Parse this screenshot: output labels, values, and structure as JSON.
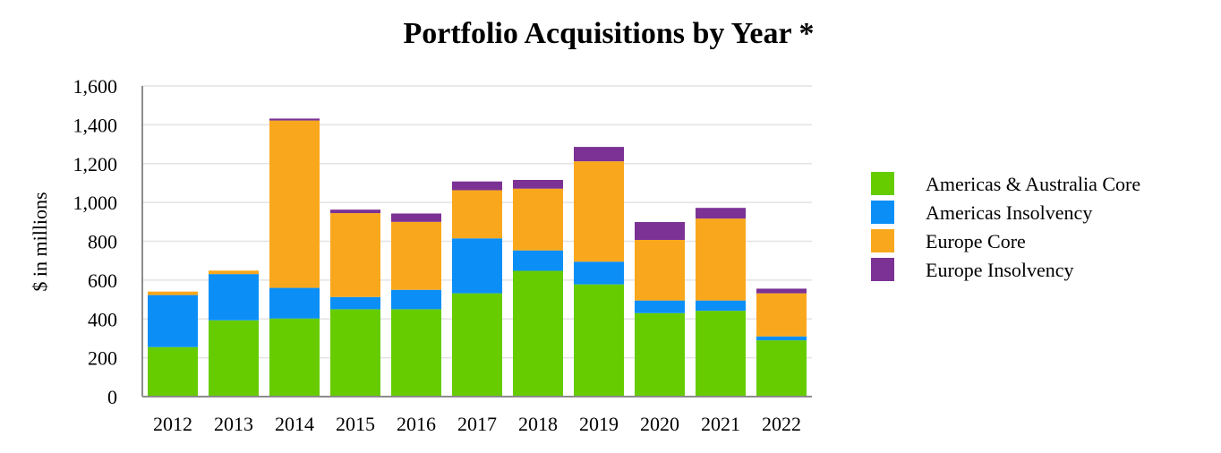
{
  "chart_data": {
    "type": "bar",
    "stacked": true,
    "title": "Portfolio Acquisitions by Year *",
    "xlabel": "",
    "ylabel": "$ in millions",
    "ylim": [
      0,
      1600
    ],
    "yticks": [
      0,
      200,
      400,
      600,
      800,
      1000,
      1200,
      1400,
      1600
    ],
    "ytick_labels": [
      "0",
      "200",
      "400",
      "600",
      "800",
      "1,000",
      "1,200",
      "1,400",
      "1,600"
    ],
    "grid": true,
    "legend_position": "right",
    "categories": [
      "2012",
      "2013",
      "2014",
      "2015",
      "2016",
      "2017",
      "2018",
      "2019",
      "2020",
      "2021",
      "2022"
    ],
    "series": [
      {
        "name": "Americas & Australia Core",
        "color": "#66cc00",
        "values": [
          255,
          393,
          402,
          450,
          450,
          532,
          648,
          578,
          430,
          442,
          290
        ]
      },
      {
        "name": "Americas Insolvency",
        "color": "#0b8ff7",
        "values": [
          268,
          238,
          158,
          63,
          100,
          283,
          105,
          117,
          65,
          53,
          20
        ]
      },
      {
        "name": "Europe Core",
        "color": "#f9a81d",
        "values": [
          18,
          18,
          862,
          432,
          350,
          248,
          318,
          517,
          312,
          422,
          222
        ]
      },
      {
        "name": "Europe Insolvency",
        "color": "#7b3294",
        "values": [
          0,
          0,
          10,
          18,
          43,
          45,
          45,
          74,
          92,
          55,
          24
        ]
      }
    ]
  }
}
